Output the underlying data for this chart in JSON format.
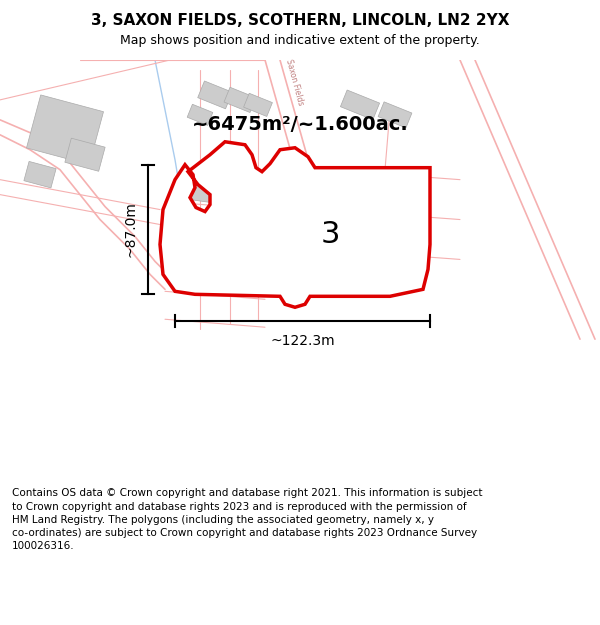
{
  "title": "3, SAXON FIELDS, SCOTHERN, LINCOLN, LN2 2YX",
  "subtitle": "Map shows position and indicative extent of the property.",
  "footer": "Contains OS data © Crown copyright and database right 2021. This information is subject to Crown copyright and database rights 2023 and is reproduced with the permission of HM Land Registry. The polygons (including the associated geometry, namely x, y co-ordinates) are subject to Crown copyright and database rights 2023 Ordnance Survey 100026316.",
  "area_label": "~6475m²/~1.600ac.",
  "plot_number": "3",
  "width_label": "~122.3m",
  "height_label": "~87.0m",
  "bg_color": "#ffffff",
  "red_color": "#dd0000",
  "light_red": "#f5b0b0",
  "light_blue": "#aaccee",
  "gray_fill": "#cccccc",
  "title_fontsize": 11,
  "subtitle_fontsize": 9,
  "footer_fontsize": 7.5
}
